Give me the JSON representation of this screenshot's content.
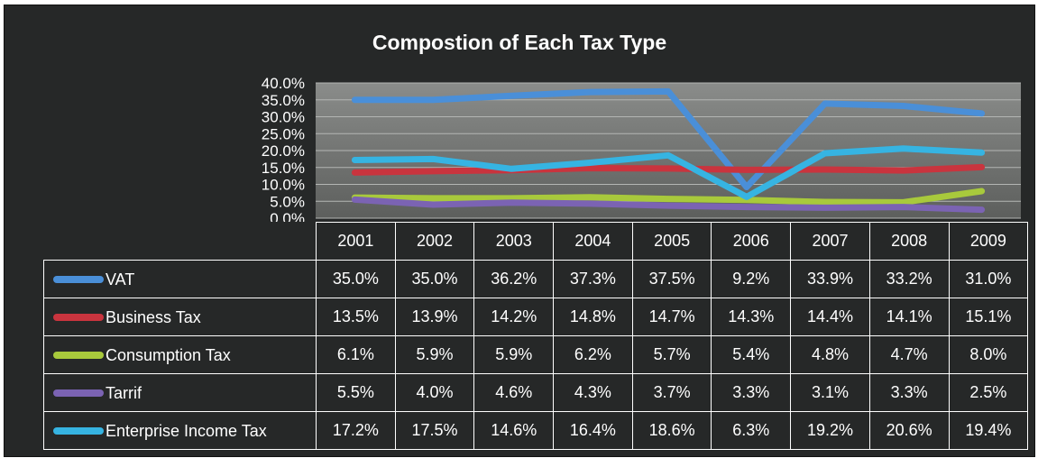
{
  "chart_data": {
    "type": "line",
    "title": "Compostion of Each Tax Type",
    "categories": [
      "2001",
      "2002",
      "2003",
      "2004",
      "2005",
      "2006",
      "2007",
      "2008",
      "2009"
    ],
    "ylim": [
      0,
      40
    ],
    "yticks": [
      "0.0%",
      "5.0%",
      "10.0%",
      "15.0%",
      "20.0%",
      "25.0%",
      "30.0%",
      "35.0%",
      "40.0%"
    ],
    "grid": true,
    "legend": "data-table-left",
    "series": [
      {
        "name": "VAT",
        "color": "#4a8fd8",
        "values": [
          35.0,
          35.0,
          36.2,
          37.3,
          37.5,
          9.2,
          33.9,
          33.2,
          31.0
        ],
        "labels": [
          "35.0%",
          "35.0%",
          "36.2%",
          "37.3%",
          "37.5%",
          "9.2%",
          "33.9%",
          "33.2%",
          "31.0%"
        ]
      },
      {
        "name": "Business Tax",
        "color": "#c9343e",
        "values": [
          13.5,
          13.9,
          14.2,
          14.8,
          14.7,
          14.3,
          14.4,
          14.1,
          15.1
        ],
        "labels": [
          "13.5%",
          "13.9%",
          "14.2%",
          "14.8%",
          "14.7%",
          "14.3%",
          "14.4%",
          "14.1%",
          "15.1%"
        ]
      },
      {
        "name": "Consumption Tax",
        "color": "#a8c93c",
        "values": [
          6.1,
          5.9,
          5.9,
          6.2,
          5.7,
          5.4,
          4.8,
          4.7,
          8.0
        ],
        "labels": [
          "6.1%",
          "5.9%",
          "5.9%",
          "6.2%",
          "5.7%",
          "5.4%",
          "4.8%",
          "4.7%",
          "8.0%"
        ]
      },
      {
        "name": "Tarrif",
        "color": "#7b63b3",
        "values": [
          5.5,
          4.0,
          4.6,
          4.3,
          3.7,
          3.3,
          3.1,
          3.3,
          2.5
        ],
        "labels": [
          "5.5%",
          "4.0%",
          "4.6%",
          "4.3%",
          "3.7%",
          "3.3%",
          "3.1%",
          "3.3%",
          "2.5%"
        ]
      },
      {
        "name": "Enterprise Income Tax",
        "color": "#36b4e2",
        "values": [
          17.2,
          17.5,
          14.6,
          16.4,
          18.6,
          6.3,
          19.2,
          20.6,
          19.4
        ],
        "labels": [
          "17.2%",
          "17.5%",
          "14.6%",
          "16.4%",
          "18.6%",
          "6.3%",
          "19.2%",
          "20.6%",
          "19.4%"
        ]
      }
    ]
  }
}
